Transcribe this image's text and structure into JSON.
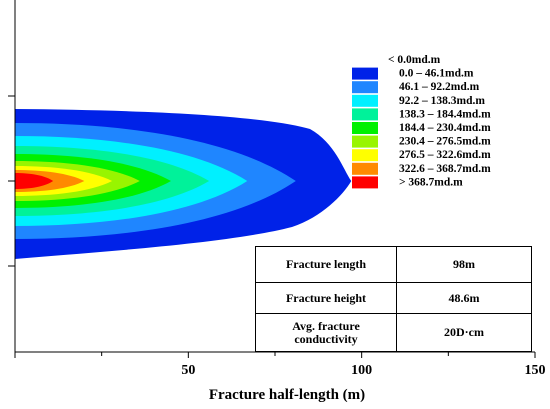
{
  "chart_data": {
    "type": "contour",
    "title": "",
    "xlabel": "Fracture half-length (m)",
    "ylabel": "",
    "xlim": [
      0,
      150
    ],
    "x_ticks": [
      0,
      50,
      100,
      150
    ],
    "x_tick_labels": [
      "",
      "50",
      "100",
      "150"
    ],
    "legend_placement": "top-right",
    "legend": [
      {
        "label": "< 0.0md.m",
        "color": "#ffffff"
      },
      {
        "label": "0.0 – 46.1md.m",
        "color": "#0022e8"
      },
      {
        "label": "46.1 – 92.2md.m",
        "color": "#1f86ff"
      },
      {
        "label": "92.2 – 138.3md.m",
        "color": "#00f0ff"
      },
      {
        "label": "138.3 – 184.4md.m",
        "color": "#00f29a"
      },
      {
        "label": "184.4 – 230.4md.m",
        "color": "#00f000"
      },
      {
        "label": "230.4 – 276.5md.m",
        "color": "#98f500"
      },
      {
        "label": "276.5 – 322.6md.m",
        "color": "#ffff00"
      },
      {
        "label": "322.6 – 368.7md.m",
        "color": "#ff8a00"
      },
      {
        "label": ">  368.7md.m",
        "color": "#ff0000"
      }
    ],
    "contour_extents_m": [
      97,
      81,
      67,
      56,
      45,
      36,
      28,
      20,
      11
    ]
  },
  "info_table": {
    "rows": [
      {
        "label": "Fracture length",
        "value": "98m"
      },
      {
        "label": "Fracture height",
        "value": "48.6m"
      },
      {
        "label": "Avg. fracture conductivity",
        "value": "20D·cm"
      }
    ]
  }
}
